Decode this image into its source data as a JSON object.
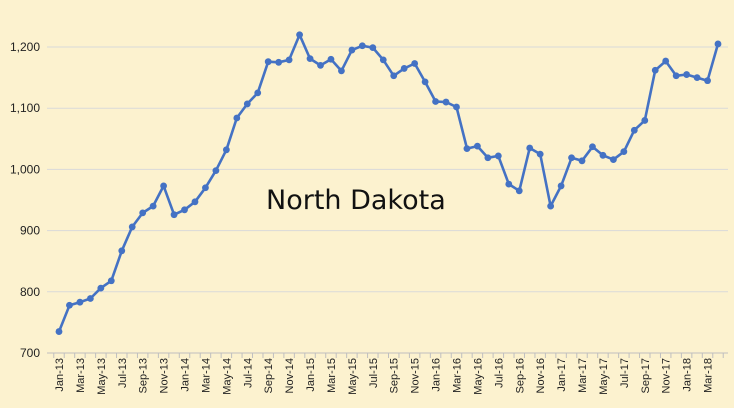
{
  "chart_data": {
    "type": "line",
    "annotation": "North Dakota",
    "ylim": [
      700,
      1200
    ],
    "y_ticks": [
      "700",
      "800",
      "900",
      "1,000",
      "1,100",
      "1,200"
    ],
    "x_tick_labels": [
      "Jan-13",
      "Mar-13",
      "May-13",
      "Jul-13",
      "Sep-13",
      "Nov-13",
      "Jan-14",
      "Mar-14",
      "May-14",
      "Jul-14",
      "Sep-14",
      "Nov-14",
      "Jan-15",
      "Mar-15",
      "May-15",
      "Jul-15",
      "Sep-15",
      "Nov-15",
      "Jan-16",
      "Mar-16",
      "May-16",
      "Jul-16",
      "Sep-16",
      "Nov-16",
      "Jan-17",
      "Mar-17",
      "May-17",
      "Jul-17",
      "Sep-17",
      "Nov-17",
      "Jan-18",
      "Mar-18"
    ],
    "grid": "horizontal",
    "line_color": "#4472c4",
    "series": [
      {
        "x": [
          "Jan-13",
          "Feb-13",
          "Mar-13",
          "Apr-13",
          "May-13",
          "Jun-13",
          "Jul-13",
          "Aug-13",
          "Sep-13",
          "Oct-13",
          "Nov-13",
          "Dec-13",
          "Jan-14",
          "Feb-14",
          "Mar-14",
          "Apr-14",
          "May-14",
          "Jun-14",
          "Jul-14",
          "Aug-14",
          "Sep-14",
          "Oct-14",
          "Nov-14",
          "Dec-14",
          "Jan-15",
          "Feb-15",
          "Mar-15",
          "Apr-15",
          "May-15",
          "Jun-15",
          "Jul-15",
          "Aug-15",
          "Sep-15",
          "Oct-15",
          "Nov-15",
          "Dec-15",
          "Jan-16",
          "Feb-16",
          "Mar-16",
          "Apr-16",
          "May-16",
          "Jun-16",
          "Jul-16",
          "Aug-16",
          "Sep-16",
          "Oct-16",
          "Nov-16",
          "Dec-16",
          "Jan-17",
          "Feb-17",
          "Mar-17",
          "Apr-17",
          "May-17",
          "Jun-17",
          "Jul-17",
          "Aug-17",
          "Sep-17",
          "Oct-17",
          "Nov-17",
          "Dec-17",
          "Jan-18",
          "Feb-18",
          "Mar-18",
          "Apr-18"
        ],
        "values": [
          735,
          778,
          783,
          789,
          806,
          818,
          867,
          906,
          929,
          940,
          973,
          926,
          934,
          947,
          970,
          998,
          1032,
          1084,
          1107,
          1125,
          1176,
          1175,
          1179,
          1220,
          1181,
          1170,
          1180,
          1161,
          1195,
          1202,
          1199,
          1179,
          1153,
          1165,
          1173,
          1143,
          1111,
          1110,
          1102,
          1034,
          1038,
          1019,
          1022,
          976,
          965,
          1035,
          1025,
          940,
          973,
          1019,
          1014,
          1037,
          1023,
          1016,
          1029,
          1064,
          1080,
          1162,
          1177,
          1153,
          1155,
          1150,
          1145,
          1205
        ]
      }
    ]
  }
}
